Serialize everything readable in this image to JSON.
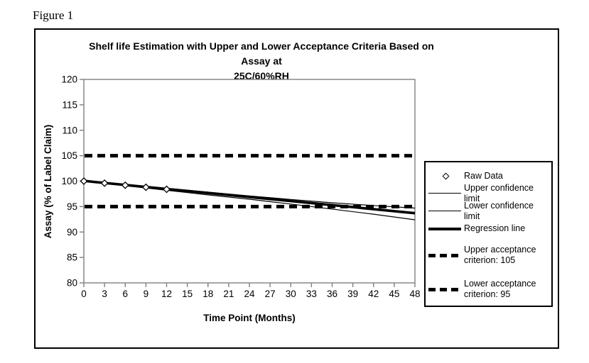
{
  "figure_label": "Figure 1",
  "chart_data": {
    "type": "line",
    "title_line1": "Shelf life Estimation with Upper and Lower Acceptance Criteria Based on Assay at",
    "title_line2": "25C/60%RH",
    "xlabel": "Time Point (Months)",
    "ylabel": "Assay (% of Label Claim)",
    "xlim": [
      0,
      48
    ],
    "ylim": [
      80,
      120
    ],
    "x_ticks": [
      0,
      3,
      6,
      9,
      12,
      15,
      18,
      21,
      24,
      27,
      30,
      33,
      36,
      39,
      42,
      45,
      48
    ],
    "y_ticks": [
      80,
      85,
      90,
      95,
      100,
      105,
      110,
      115,
      120
    ],
    "grid": false,
    "legend_position": "right",
    "colors": {
      "series": "#000000",
      "axis": "#808080",
      "background": "#ffffff",
      "text": "#000000"
    },
    "series": [
      {
        "name": "Raw Data",
        "kind": "scatter",
        "marker": "diamond",
        "x": [
          0,
          3,
          6,
          9,
          12
        ],
        "y": [
          100,
          99.6,
          99.2,
          98.8,
          98.4
        ]
      },
      {
        "name": "Upper confidence limit",
        "kind": "line",
        "style": "thin",
        "x": [
          0,
          6,
          12,
          18,
          24,
          30,
          36,
          42,
          48
        ],
        "y": [
          100.15,
          99.35,
          98.6,
          97.85,
          97.1,
          96.4,
          95.75,
          95.2,
          94.7
        ]
      },
      {
        "name": "Lower confidence limit",
        "kind": "line",
        "style": "thin",
        "x": [
          0,
          6,
          12,
          18,
          24,
          30,
          36,
          42,
          48
        ],
        "y": [
          99.95,
          99.1,
          98.2,
          97.3,
          96.45,
          95.5,
          94.5,
          93.5,
          92.4
        ]
      },
      {
        "name": "Regression line",
        "kind": "line",
        "style": "thick",
        "x": [
          0,
          48
        ],
        "y": [
          100.05,
          93.7
        ]
      },
      {
        "name": "Upper acceptance criterion: 105",
        "kind": "hline",
        "style": "thick-dashed",
        "value": 105
      },
      {
        "name": "Lower acceptance criterion: 95",
        "kind": "hline",
        "style": "thick-dashed",
        "value": 95
      }
    ]
  },
  "legend": {
    "items": [
      {
        "label": "Raw Data",
        "swatch": "diamond-marker"
      },
      {
        "label": "Upper confidence limit",
        "swatch": "thin-line"
      },
      {
        "label": "Lower confidence limit",
        "swatch": "thin-line"
      },
      {
        "label": "Regression line",
        "swatch": "thick-line"
      },
      {
        "label": "Upper acceptance criterion: 105",
        "swatch": "thick-dashed-line"
      },
      {
        "label": "Lower acceptance criterion: 95",
        "swatch": "thick-dashed-line"
      }
    ]
  }
}
